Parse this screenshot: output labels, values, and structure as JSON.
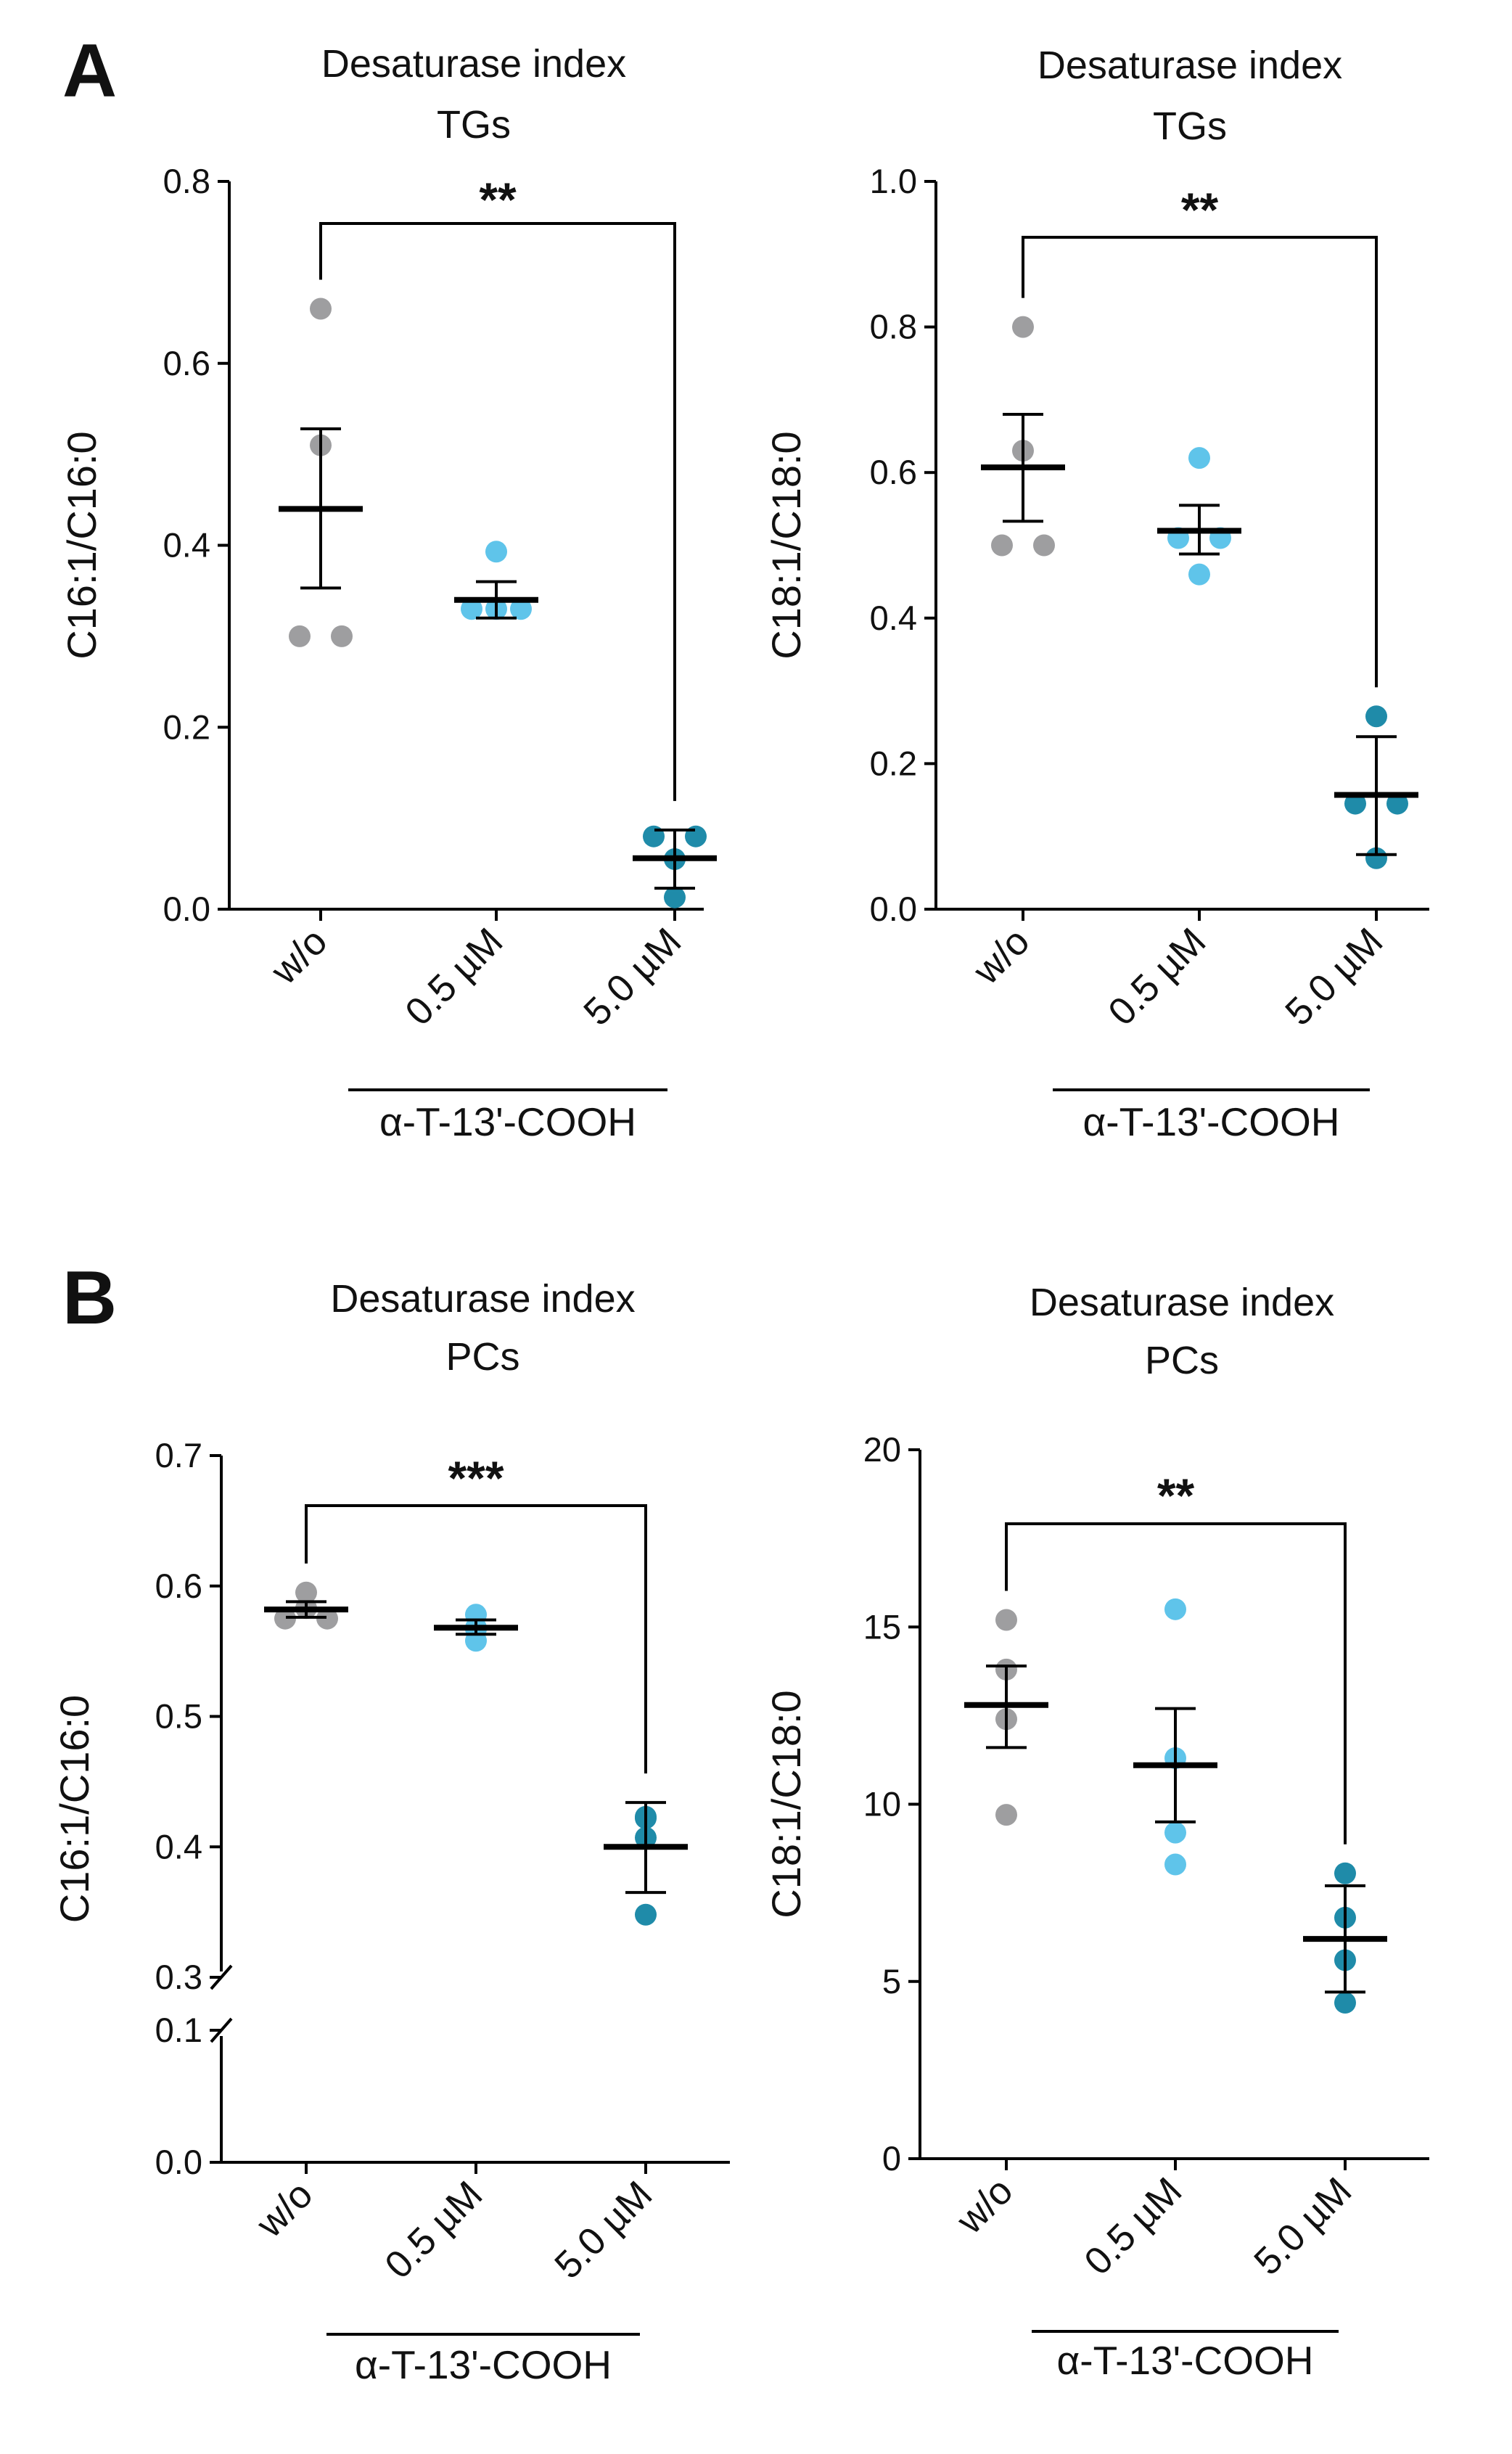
{
  "colors": {
    "w/o": "#9e9ea0",
    "0.5 µM": "#5fc4ea",
    "5.0 µM": "#1f8ba9"
  },
  "panels": [
    {
      "letter": "A"
    },
    {
      "letter": "B"
    }
  ],
  "chart_data": [
    {
      "type": "scatter",
      "panel": "A",
      "title": [
        "Desaturase index",
        "TGs"
      ],
      "xlabel": "",
      "ylabel": "C16:1/C16:0",
      "ylim": [
        0,
        0.8
      ],
      "yticks": [
        0.0,
        0.2,
        0.4,
        0.6,
        0.8
      ],
      "yticklabels": [
        "0.0",
        "0.2",
        "0.4",
        "0.6",
        "0.8"
      ],
      "categories": [
        "w/o",
        "0.5 µM",
        "5.0 µM"
      ],
      "group_label": "α-T-13'-COOH",
      "series": [
        {
          "name": "w/o",
          "points": [
            0.66,
            0.51,
            0.3,
            0.3
          ],
          "mean": 0.44,
          "err": [
            0.353,
            0.528
          ]
        },
        {
          "name": "0.5 µM",
          "points": [
            0.393,
            0.33,
            0.33,
            0.33
          ],
          "mean": 0.34,
          "err": [
            0.32,
            0.36
          ]
        },
        {
          "name": "5.0 µM",
          "points": [
            0.08,
            0.08,
            0.055,
            0.013
          ],
          "mean": 0.056,
          "err": [
            0.023,
            0.087
          ]
        }
      ],
      "significance": {
        "label": "**",
        "from": "w/o",
        "to": "5.0 µM"
      }
    },
    {
      "type": "scatter",
      "panel": "A",
      "title": [
        "Desaturase index",
        "TGs"
      ],
      "xlabel": "",
      "ylabel": "C18:1/C18:0",
      "ylim": [
        0,
        1.0
      ],
      "yticks": [
        0.0,
        0.2,
        0.4,
        0.6,
        0.8,
        1.0
      ],
      "yticklabels": [
        "0.0",
        "0.2",
        "0.4",
        "0.6",
        "0.8",
        "1.0"
      ],
      "categories": [
        "w/o",
        "0.5 µM",
        "5.0 µM"
      ],
      "group_label": "α-T-13'-COOH",
      "series": [
        {
          "name": "w/o",
          "points": [
            0.8,
            0.63,
            0.5,
            0.5
          ],
          "mean": 0.607,
          "err": [
            0.533,
            0.68
          ]
        },
        {
          "name": "0.5 µM",
          "points": [
            0.62,
            0.51,
            0.51,
            0.46
          ],
          "mean": 0.52,
          "err": [
            0.488,
            0.555
          ]
        },
        {
          "name": "5.0 µM",
          "points": [
            0.265,
            0.145,
            0.145,
            0.07
          ],
          "mean": 0.157,
          "err": [
            0.075,
            0.237
          ]
        }
      ],
      "significance": {
        "label": "**",
        "from": "w/o",
        "to": "5.0 µM"
      }
    },
    {
      "type": "scatter",
      "panel": "B",
      "title": [
        "Desaturase index",
        "PCs"
      ],
      "xlabel": "",
      "ylabel": "C16:1/C16:0",
      "ylim": [
        0,
        0.7
      ],
      "axis_break": [
        0.1,
        0.3
      ],
      "yticks": [
        0.0,
        0.1,
        0.3,
        0.4,
        0.5,
        0.6,
        0.7
      ],
      "yticklabels": [
        "0.0",
        "0.1",
        "0.3",
        "0.4",
        "0.5",
        "0.6",
        "0.7"
      ],
      "categories": [
        "w/o",
        "0.5 µM",
        "5.0 µM"
      ],
      "group_label": "α-T-13'-COOH",
      "series": [
        {
          "name": "w/o",
          "points": [
            0.575,
            0.583,
            0.595,
            0.575
          ],
          "mean": 0.582,
          "err": [
            0.576,
            0.588
          ]
        },
        {
          "name": "0.5 µM",
          "points": [
            0.578,
            0.558,
            0.568,
            0.567
          ],
          "mean": 0.568,
          "err": [
            0.563,
            0.574
          ]
        },
        {
          "name": "5.0 µM",
          "points": [
            0.422,
            0.423,
            0.407,
            0.348
          ],
          "mean": 0.4,
          "err": [
            0.365,
            0.434
          ]
        }
      ],
      "significance": {
        "label": "***",
        "from": "w/o",
        "to": "5.0 µM"
      }
    },
    {
      "type": "scatter",
      "panel": "B",
      "title": [
        "Desaturase index",
        "PCs"
      ],
      "xlabel": "",
      "ylabel": "C18:1/C18:0",
      "ylim": [
        0,
        20
      ],
      "yticks": [
        0,
        5,
        10,
        15,
        20
      ],
      "yticklabels": [
        "0",
        "5",
        "10",
        "15",
        "20"
      ],
      "categories": [
        "w/o",
        "0.5 µM",
        "5.0 µM"
      ],
      "group_label": "α-T-13'-COOH",
      "series": [
        {
          "name": "w/o",
          "points": [
            15.2,
            13.8,
            12.4,
            9.7
          ],
          "mean": 12.8,
          "err": [
            11.6,
            13.9
          ]
        },
        {
          "name": "0.5 µM",
          "points": [
            15.5,
            11.3,
            9.2,
            8.3
          ],
          "mean": 11.1,
          "err": [
            9.5,
            12.7
          ]
        },
        {
          "name": "5.0 µM",
          "points": [
            8.05,
            6.8,
            5.6,
            4.4
          ],
          "mean": 6.2,
          "err": [
            4.7,
            7.7
          ]
        }
      ],
      "significance": {
        "label": "**",
        "from": "w/o",
        "to": "5.0 µM"
      }
    }
  ]
}
